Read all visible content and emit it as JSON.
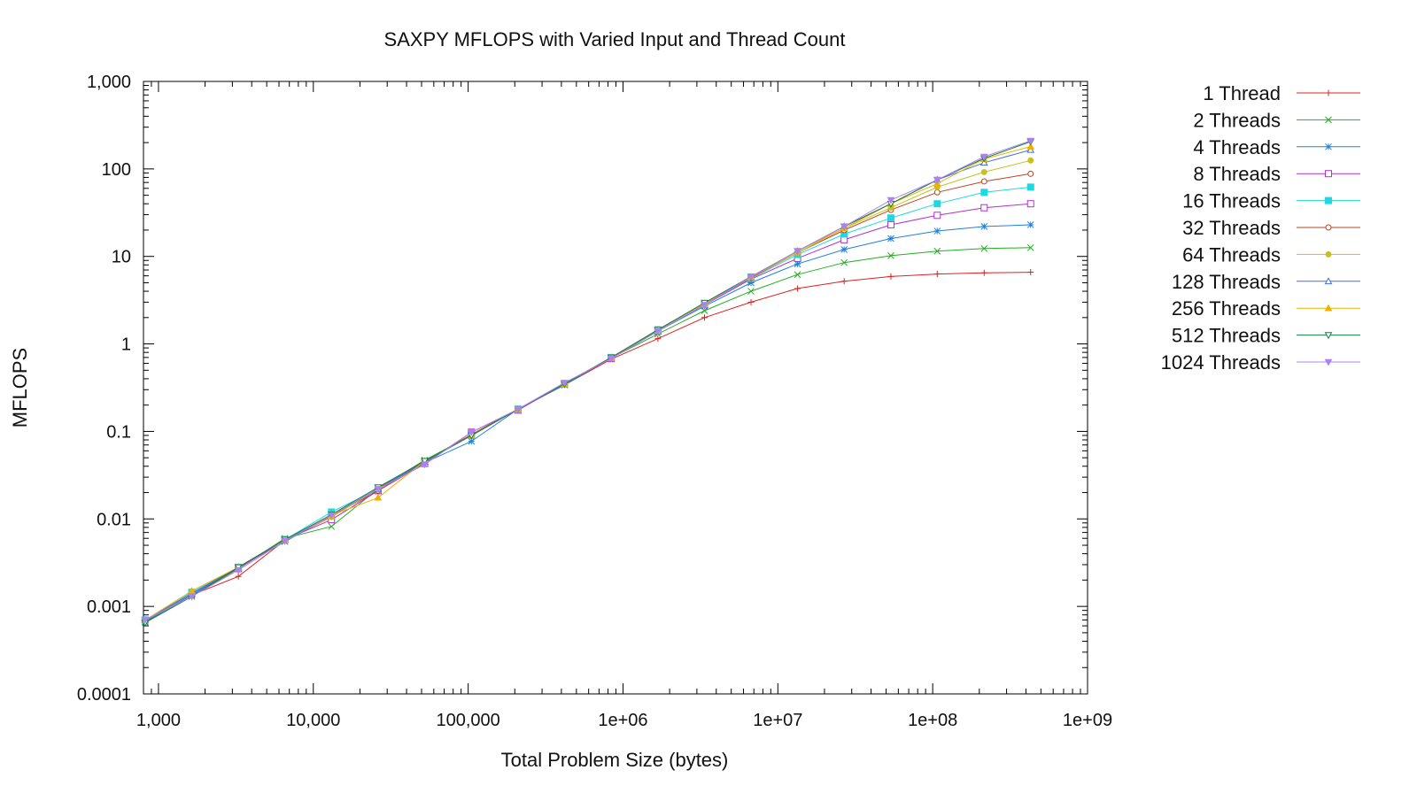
{
  "chart_data": {
    "type": "line",
    "title": "SAXPY MFLOPS with Varied Input and Thread Count",
    "xlabel": "Total Problem Size (bytes)",
    "ylabel": "MFLOPS",
    "x_scale": "log",
    "y_scale": "log",
    "xlim": [
      800,
      1000000000
    ],
    "ylim": [
      0.0001,
      1000
    ],
    "grid": false,
    "legend_position": "right",
    "x_ticks": [
      {
        "value": 1000,
        "label": "1,000"
      },
      {
        "value": 10000,
        "label": "10,000"
      },
      {
        "value": 100000,
        "label": "100,000"
      },
      {
        "value": 1000000,
        "label": "1e+06"
      },
      {
        "value": 10000000,
        "label": "1e+07"
      },
      {
        "value": 100000000,
        "label": "1e+08"
      },
      {
        "value": 1000000000,
        "label": "1e+09"
      }
    ],
    "y_ticks": [
      {
        "value": 0.0001,
        "label": "0.0001"
      },
      {
        "value": 0.001,
        "label": "0.001"
      },
      {
        "value": 0.01,
        "label": "0.01"
      },
      {
        "value": 0.1,
        "label": "0.1"
      },
      {
        "value": 1,
        "label": "1"
      },
      {
        "value": 10,
        "label": "10"
      },
      {
        "value": 100,
        "label": "100"
      },
      {
        "value": 1000,
        "label": "1,000"
      }
    ],
    "x": [
      820,
      1640,
      3280,
      6550,
      13100,
      26200,
      52400,
      105000,
      210000,
      419000,
      839000,
      1680000,
      3360000,
      6710000,
      13400000,
      26800000,
      53700000,
      107000000,
      215000000,
      429000000
    ],
    "series": [
      {
        "name": "1 Thread",
        "color": "#e02020",
        "marker": "plus",
        "values": [
          0.00068,
          0.00135,
          0.0022,
          0.0057,
          0.0105,
          0.0225,
          0.046,
          0.092,
          0.18,
          0.34,
          0.67,
          1.15,
          2.0,
          3.0,
          4.3,
          5.2,
          5.9,
          6.3,
          6.5,
          6.6
        ]
      },
      {
        "name": "2 Threads",
        "color": "#20b020",
        "marker": "x",
        "values": [
          0.00066,
          0.0013,
          0.0027,
          0.006,
          0.0082,
          0.022,
          0.047,
          0.09,
          0.18,
          0.34,
          0.69,
          1.3,
          2.4,
          4.0,
          6.2,
          8.5,
          10.2,
          11.5,
          12.3,
          12.6
        ]
      },
      {
        "name": "4 Threads",
        "color": "#2080e0",
        "marker": "star",
        "values": [
          0.00067,
          0.00135,
          0.0028,
          0.0055,
          0.011,
          0.022,
          0.044,
          0.077,
          0.18,
          0.34,
          0.7,
          1.4,
          2.7,
          5.0,
          8.2,
          12.0,
          16.0,
          19.5,
          22.0,
          23.0
        ]
      },
      {
        "name": "8 Threads",
        "color": "#b030d0",
        "marker": "square-open",
        "values": [
          0.0007,
          0.0014,
          0.0027,
          0.0058,
          0.0098,
          0.021,
          0.043,
          0.098,
          0.175,
          0.35,
          0.68,
          1.4,
          2.8,
          5.5,
          9.5,
          15.5,
          23.0,
          29.5,
          36.0,
          40.0
        ]
      },
      {
        "name": "16 Threads",
        "color": "#20d8e0",
        "marker": "square",
        "values": [
          0.0007,
          0.00145,
          0.0028,
          0.0058,
          0.012,
          0.022,
          0.045,
          0.09,
          0.18,
          0.35,
          0.7,
          1.45,
          2.9,
          5.6,
          10.5,
          18.0,
          27.5,
          40.0,
          54.0,
          62.0
        ]
      },
      {
        "name": "32 Threads",
        "color": "#c04020",
        "marker": "circle-open",
        "values": [
          0.0007,
          0.0014,
          0.0028,
          0.0058,
          0.0108,
          0.021,
          0.045,
          0.092,
          0.18,
          0.35,
          0.7,
          1.45,
          2.9,
          5.7,
          11.0,
          20.0,
          34.0,
          54.0,
          72.0,
          88.0
        ]
      },
      {
        "name": "64 Threads",
        "color": "#c8c020",
        "marker": "circle",
        "values": [
          0.0007,
          0.0014,
          0.0028,
          0.0058,
          0.0105,
          0.022,
          0.045,
          0.09,
          0.18,
          0.35,
          0.7,
          1.45,
          2.9,
          5.8,
          11.0,
          21.0,
          36.0,
          62.0,
          92.0,
          125.0
        ]
      },
      {
        "name": "128 Threads",
        "color": "#4070e0",
        "marker": "triangle-open",
        "values": [
          0.0007,
          0.0014,
          0.0028,
          0.0058,
          0.011,
          0.022,
          0.045,
          0.09,
          0.18,
          0.35,
          0.7,
          1.45,
          2.9,
          5.8,
          11.5,
          22.0,
          40.0,
          75.0,
          118.0,
          165.0
        ]
      },
      {
        "name": "256 Threads",
        "color": "#f0b000",
        "marker": "triangle",
        "values": [
          0.0007,
          0.0015,
          0.0028,
          0.0058,
          0.011,
          0.0175,
          0.046,
          0.09,
          0.18,
          0.35,
          0.7,
          1.45,
          2.9,
          5.8,
          11.5,
          21.0,
          40.0,
          68.0,
          130.0,
          180.0
        ]
      },
      {
        "name": "512 Threads",
        "color": "#108040",
        "marker": "triangle-down-open",
        "values": [
          0.00065,
          0.0013,
          0.0028,
          0.0058,
          0.0112,
          0.023,
          0.046,
          0.09,
          0.18,
          0.35,
          0.7,
          1.45,
          2.95,
          5.9,
          11.5,
          22.0,
          40.0,
          75.0,
          132.0,
          205.0
        ]
      },
      {
        "name": "1024 Threads",
        "color": "#b080f0",
        "marker": "triangle-down",
        "values": [
          0.0007,
          0.0013,
          0.0026,
          0.0056,
          0.011,
          0.022,
          0.042,
          0.098,
          0.18,
          0.36,
          0.68,
          1.4,
          2.8,
          5.9,
          11.5,
          22.0,
          44.0,
          75.0,
          138.0,
          210.0
        ]
      }
    ]
  }
}
